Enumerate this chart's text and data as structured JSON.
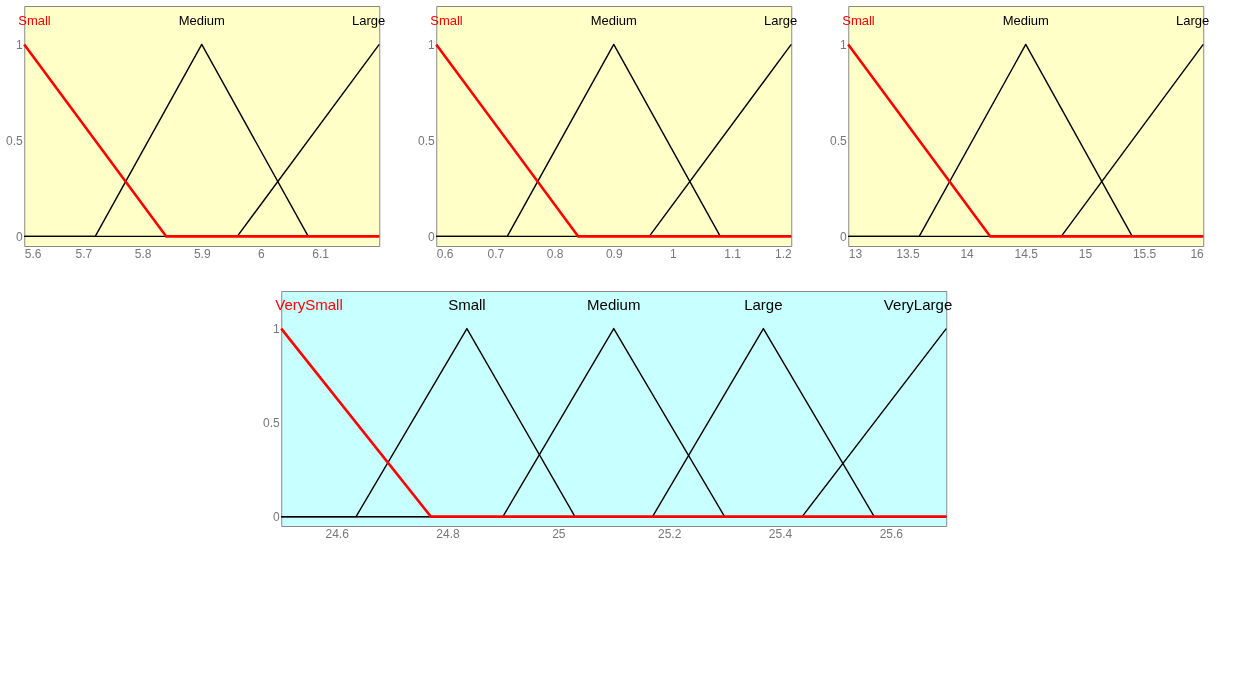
{
  "chart_data": [
    {
      "type": "line",
      "xlim": [
        5.6,
        6.2
      ],
      "xticks": [
        5.6,
        5.7,
        5.8,
        5.9,
        6,
        6.1
      ],
      "ylim": [
        -0.05,
        1.2
      ],
      "yticks": [
        0,
        0.5,
        1
      ],
      "grid": false,
      "legend": false,
      "marker": "none",
      "series": [
        {
          "name": "Small",
          "color": "#ff0000",
          "x": [
            5.6,
            5.84,
            6.2
          ],
          "values": [
            1,
            0,
            0
          ]
        },
        {
          "name": "Medium",
          "color": "#000000",
          "x": [
            5.6,
            5.72,
            5.9,
            6.08,
            6.2
          ],
          "values": [
            0,
            0,
            1,
            0,
            0
          ]
        },
        {
          "name": "Large",
          "color": "#000000",
          "x": [
            5.6,
            5.96,
            6.2
          ],
          "values": [
            0,
            0,
            1
          ]
        }
      ]
    },
    {
      "type": "line",
      "xlim": [
        0.6,
        1.2
      ],
      "xticks": [
        0.6,
        0.7,
        0.8,
        0.9,
        1,
        1.1,
        1.2
      ],
      "ylim": [
        -0.05,
        1.2
      ],
      "yticks": [
        0,
        0.5,
        1
      ],
      "grid": false,
      "legend": false,
      "marker": "none",
      "series": [
        {
          "name": "Small",
          "color": "#ff0000",
          "x": [
            0.6,
            0.84,
            1.2
          ],
          "values": [
            1,
            0,
            0
          ]
        },
        {
          "name": "Medium",
          "color": "#000000",
          "x": [
            0.6,
            0.72,
            0.9,
            1.08,
            1.2
          ],
          "values": [
            0,
            0,
            1,
            0,
            0
          ]
        },
        {
          "name": "Large",
          "color": "#000000",
          "x": [
            0.6,
            0.96,
            1.2
          ],
          "values": [
            0,
            0,
            1
          ]
        }
      ]
    },
    {
      "type": "line",
      "xlim": [
        13,
        16
      ],
      "xticks": [
        13,
        13.5,
        14,
        14.5,
        15,
        15.5,
        16
      ],
      "ylim": [
        -0.05,
        1.2
      ],
      "yticks": [
        0,
        0.5,
        1
      ],
      "grid": false,
      "legend": false,
      "marker": "none",
      "series": [
        {
          "name": "Small",
          "color": "#ff0000",
          "x": [
            13,
            14.2,
            16
          ],
          "values": [
            1,
            0,
            0
          ]
        },
        {
          "name": "Medium",
          "color": "#000000",
          "x": [
            13,
            13.6,
            14.5,
            15.4,
            16
          ],
          "values": [
            0,
            0,
            1,
            0,
            0
          ]
        },
        {
          "name": "Large",
          "color": "#000000",
          "x": [
            13,
            14.8,
            16
          ],
          "values": [
            0,
            0,
            1
          ]
        }
      ]
    },
    {
      "type": "line",
      "xlim": [
        24.5,
        25.7
      ],
      "xticks": [
        24.6,
        24.8,
        25,
        25.2,
        25.4,
        25.6
      ],
      "ylim": [
        -0.05,
        1.2
      ],
      "yticks": [
        0,
        0.5,
        1
      ],
      "grid": false,
      "legend": false,
      "marker": "none",
      "series": [
        {
          "name": "VerySmall",
          "color": "#ff0000",
          "x": [
            24.5,
            24.77,
            25.7
          ],
          "values": [
            1,
            0,
            0
          ]
        },
        {
          "name": "Small",
          "color": "#000000",
          "x": [
            24.5,
            24.635,
            24.835,
            25.03,
            25.7
          ],
          "values": [
            0,
            0,
            1,
            0,
            0
          ]
        },
        {
          "name": "Medium",
          "color": "#000000",
          "x": [
            24.5,
            24.9,
            25.1,
            25.3,
            25.7
          ],
          "values": [
            0,
            0,
            1,
            0,
            0
          ]
        },
        {
          "name": "Large",
          "color": "#000000",
          "x": [
            24.5,
            25.17,
            25.37,
            25.57,
            25.7
          ],
          "values": [
            0,
            0,
            1,
            0,
            0
          ]
        },
        {
          "name": "VeryLarge",
          "color": "#000000",
          "x": [
            24.5,
            25.44,
            25.7
          ],
          "values": [
            0,
            0,
            1
          ]
        }
      ]
    }
  ]
}
